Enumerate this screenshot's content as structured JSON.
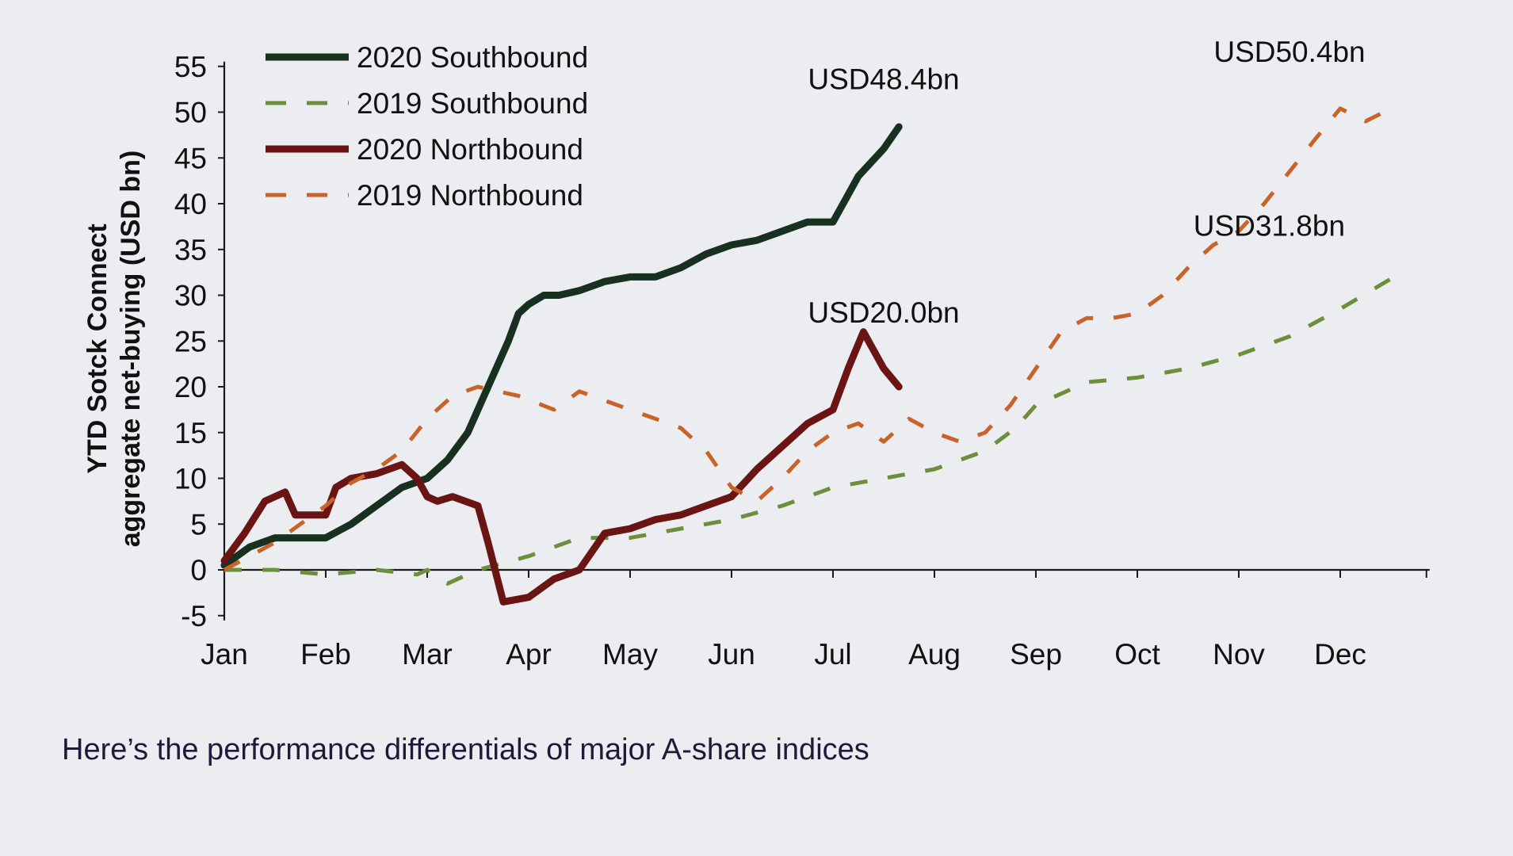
{
  "caption": "Here’s the performance differentials of major A-share indices",
  "chart_data": {
    "type": "line",
    "title": "",
    "xlabel": "",
    "ylabel": "YTD Sotck Connect aggregate net-buying (USD bn)",
    "ylabel_lines": [
      "YTD Sotck Connect",
      "aggregate net-buying (USD bn)"
    ],
    "ylim": [
      -5,
      55
    ],
    "xlim": [
      0,
      11.85
    ],
    "yticks": [
      55,
      50,
      45,
      40,
      35,
      30,
      25,
      20,
      15,
      10,
      5,
      0,
      -5
    ],
    "xtick_labels": [
      "Jan",
      "Feb",
      "Mar",
      "Apr",
      "May",
      "Jun",
      "Jul",
      "Aug",
      "Sep",
      "Oct",
      "Nov",
      "Dec"
    ],
    "grid": false,
    "legend_position": "top-left",
    "x_unit": "months since start of year",
    "series": [
      {
        "name": "2020 Southbound",
        "color": "#17301f",
        "style": "solid",
        "width": 9,
        "x": [
          0,
          0.25,
          0.5,
          0.75,
          1.0,
          1.25,
          1.5,
          1.75,
          2.0,
          2.2,
          2.4,
          2.6,
          2.8,
          2.9,
          3.0,
          3.15,
          3.3,
          3.5,
          3.75,
          4.0,
          4.25,
          4.5,
          4.75,
          5.0,
          5.25,
          5.5,
          5.75,
          6.0,
          6.1,
          6.25,
          6.5,
          6.65
        ],
        "y": [
          0.5,
          2.5,
          3.5,
          3.5,
          3.5,
          5,
          7,
          9,
          10,
          12,
          15,
          20,
          25,
          28,
          29,
          30,
          30,
          30.5,
          31.5,
          32,
          32,
          33,
          34.5,
          35.5,
          36,
          37,
          38,
          38,
          40,
          43,
          46,
          48.4
        ]
      },
      {
        "name": "2019 Southbound",
        "color": "#6c8f3c",
        "style": "dashed",
        "width": 5,
        "x": [
          0,
          0.5,
          1.0,
          1.5,
          1.9,
          2.0,
          2.2,
          2.5,
          3.0,
          3.5,
          4.0,
          4.5,
          5.0,
          5.5,
          6.0,
          6.5,
          7.0,
          7.5,
          7.8,
          8.0,
          8.5,
          9.0,
          9.5,
          10.0,
          10.5,
          11.0,
          11.5
        ],
        "y": [
          0,
          0,
          -0.5,
          0,
          -0.5,
          0,
          -1.5,
          0,
          1.5,
          3.5,
          3.5,
          4.5,
          5.5,
          7,
          9,
          10,
          11,
          13,
          15.5,
          18,
          20.5,
          21,
          22,
          23.5,
          25.5,
          28.5,
          31.8
        ]
      },
      {
        "name": "2020 Northbound",
        "color": "#6b1414",
        "style": "solid",
        "width": 9,
        "x": [
          0,
          0.2,
          0.4,
          0.6,
          0.7,
          0.8,
          1.0,
          1.1,
          1.25,
          1.5,
          1.75,
          1.9,
          2.0,
          2.1,
          2.25,
          2.5,
          2.6,
          2.75,
          3.0,
          3.25,
          3.5,
          3.75,
          4.0,
          4.25,
          4.5,
          4.75,
          5.0,
          5.25,
          5.5,
          5.75,
          6.0,
          6.15,
          6.3,
          6.4,
          6.5,
          6.65
        ],
        "y": [
          1,
          4,
          7.5,
          8.5,
          6,
          6,
          6,
          9,
          10,
          10.5,
          11.5,
          10,
          8,
          7.5,
          8,
          7,
          3,
          -3.5,
          -3,
          -1,
          0,
          4,
          4.5,
          5.5,
          6,
          7,
          8,
          11,
          13.5,
          16,
          17.5,
          22,
          26,
          24,
          22,
          20
        ]
      },
      {
        "name": "2019 Northbound",
        "color": "#c8642a",
        "style": "dashed",
        "width": 5,
        "x": [
          0,
          0.5,
          1.0,
          1.25,
          1.5,
          1.75,
          2.0,
          2.25,
          2.5,
          2.9,
          3.25,
          3.5,
          4.0,
          4.25,
          4.5,
          4.75,
          5.0,
          5.25,
          5.5,
          5.75,
          6.0,
          6.25,
          6.5,
          6.75,
          7.0,
          7.25,
          7.5,
          7.75,
          8.0,
          8.25,
          8.5,
          8.75,
          9.0,
          9.25,
          9.5,
          9.75,
          10.0,
          10.25,
          10.5,
          10.75,
          11.0,
          11.25,
          11.5
        ],
        "y": [
          0,
          3,
          7,
          9.5,
          11,
          13,
          16.5,
          19,
          20,
          19,
          17.5,
          19.5,
          17.5,
          16.5,
          15.5,
          13,
          9,
          7.5,
          10,
          13,
          15,
          16,
          14,
          16.5,
          15,
          14,
          15,
          18,
          22,
          26,
          27.5,
          27.5,
          28,
          30,
          33,
          35.5,
          37,
          40,
          43.5,
          47,
          50.4,
          49,
          50.4
        ]
      }
    ],
    "annotations": [
      {
        "text": "USD48.4bn",
        "x": 6.5,
        "y": 52.5
      },
      {
        "text": "USD50.4bn",
        "x": 10.5,
        "y": 55.5
      },
      {
        "text": "USD31.8bn",
        "x": 10.3,
        "y": 36.5
      },
      {
        "text": "USD20.0bn",
        "x": 6.5,
        "y": 27
      }
    ]
  }
}
